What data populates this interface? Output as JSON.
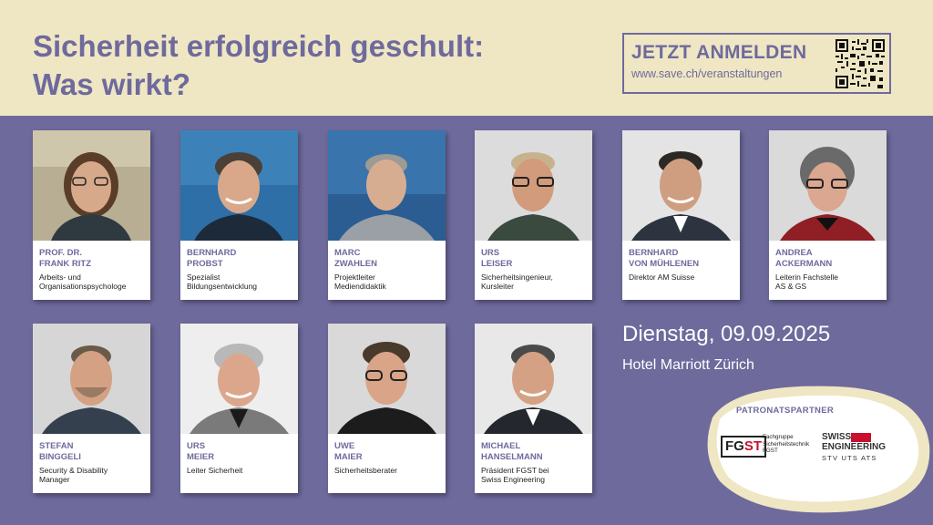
{
  "header": {
    "title_line1": "Sicherheit erfolgreich geschult:",
    "title_line2": "Was wirkt?",
    "cta_head": "JETZT ANMELDEN",
    "cta_url": "www.save.ch/veranstaltungen"
  },
  "speakers": [
    {
      "name1": "PROF. DR.",
      "name2": "FRANK RITZ",
      "role1": "Arbeits- und",
      "role2": "Organisationspsychologe"
    },
    {
      "name1": "BERNHARD",
      "name2": "PROBST",
      "role1": "Spezialist",
      "role2": "Bildungsentwicklung"
    },
    {
      "name1": "MARC",
      "name2": "ZWAHLEN",
      "role1": "Projektleiter",
      "role2": "Mediendidaktik"
    },
    {
      "name1": "URS",
      "name2": "LEISER",
      "role1": "Sicherheitsingenieur,",
      "role2": "Kursleiter"
    },
    {
      "name1": "BERNHARD",
      "name2": "VON MÜHLENEN",
      "role1": "Direktor AM Suisse",
      "role2": ""
    },
    {
      "name1": "ANDREA",
      "name2": "ACKERMANN",
      "role1": "Leiterin Fachstelle",
      "role2": "AS & GS"
    },
    {
      "name1": "STEFAN",
      "name2": "BINGGELI",
      "role1": "Security & Disability",
      "role2": "Manager"
    },
    {
      "name1": "URS",
      "name2": "MEIER",
      "role1": "Leiter Sicherheit",
      "role2": ""
    },
    {
      "name1": "UWE",
      "name2": "MAIER",
      "role1": "Sicherheitsberater",
      "role2": ""
    },
    {
      "name1": "MICHAEL",
      "name2": "HANSELMANN",
      "role1": "Präsident FGST bei",
      "role2": "Swiss Engineering"
    }
  ],
  "event": {
    "date": "Dienstag, 09.09.2025",
    "venue": "Hotel Marriott Zürich"
  },
  "patron": {
    "label": "PATRONATSPARTNER",
    "fgst_fg": "FG",
    "fgst_st": "ST",
    "fgst_text1": "Fachgruppe",
    "fgst_text2": "Sicherheitstechnik",
    "fgst_text3": "FGST",
    "swiss_l1": "SWISS",
    "swiss_l2": "ENGINEERING",
    "swiss_sub": "STV   UTS   ATS"
  },
  "colors": {
    "brand_purple": "#6e6a9c",
    "header_cream": "#efe6c4",
    "accent_red": "#c8102e"
  }
}
